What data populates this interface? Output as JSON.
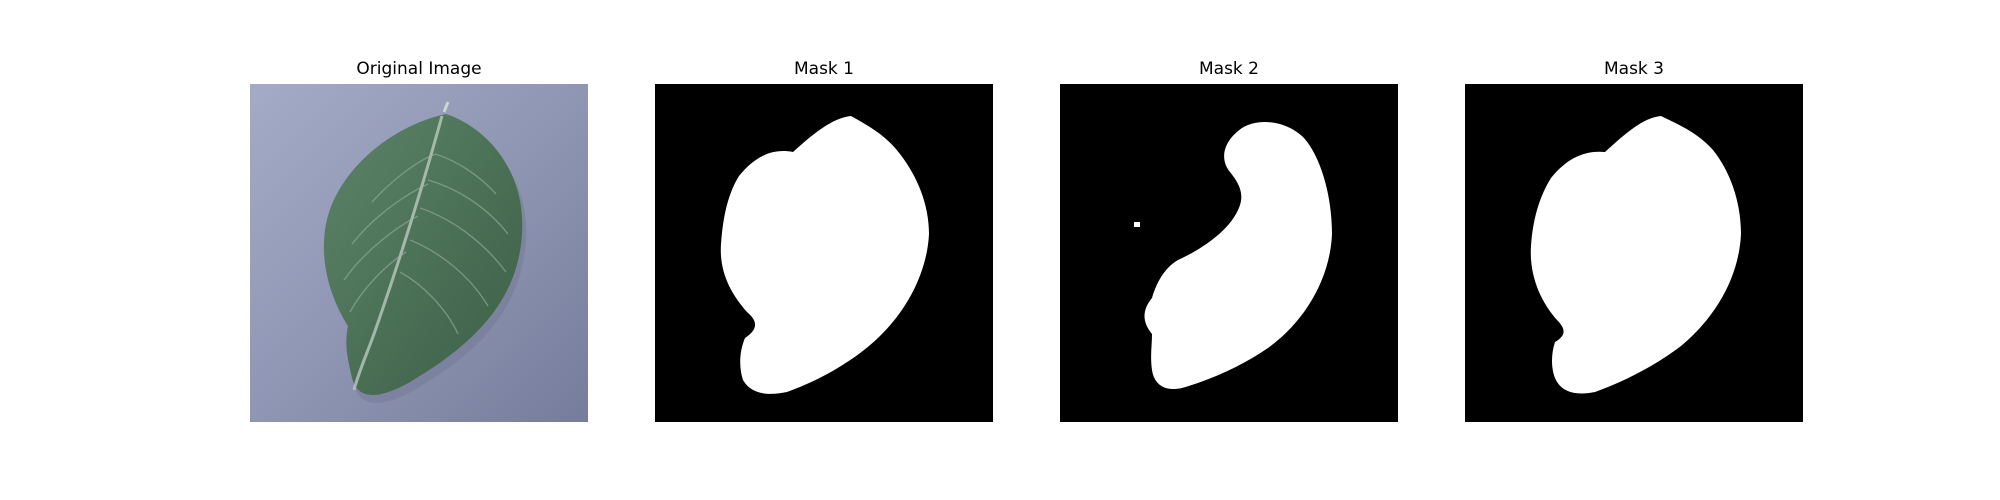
{
  "panels": [
    {
      "title": "Original Image",
      "kind": "photo",
      "subject": "green leaf on grey-blue surface",
      "colors": {
        "background": "#8e95b3",
        "leaf": "#4c7258",
        "vein": "#b9cbbd"
      }
    },
    {
      "title": "Mask 1",
      "kind": "mask",
      "colors": {
        "background": "#000000",
        "foreground": "#ffffff"
      }
    },
    {
      "title": "Mask 2",
      "kind": "mask",
      "colors": {
        "background": "#000000",
        "foreground": "#ffffff"
      }
    },
    {
      "title": "Mask 3",
      "kind": "mask",
      "colors": {
        "background": "#000000",
        "foreground": "#ffffff"
      }
    }
  ]
}
